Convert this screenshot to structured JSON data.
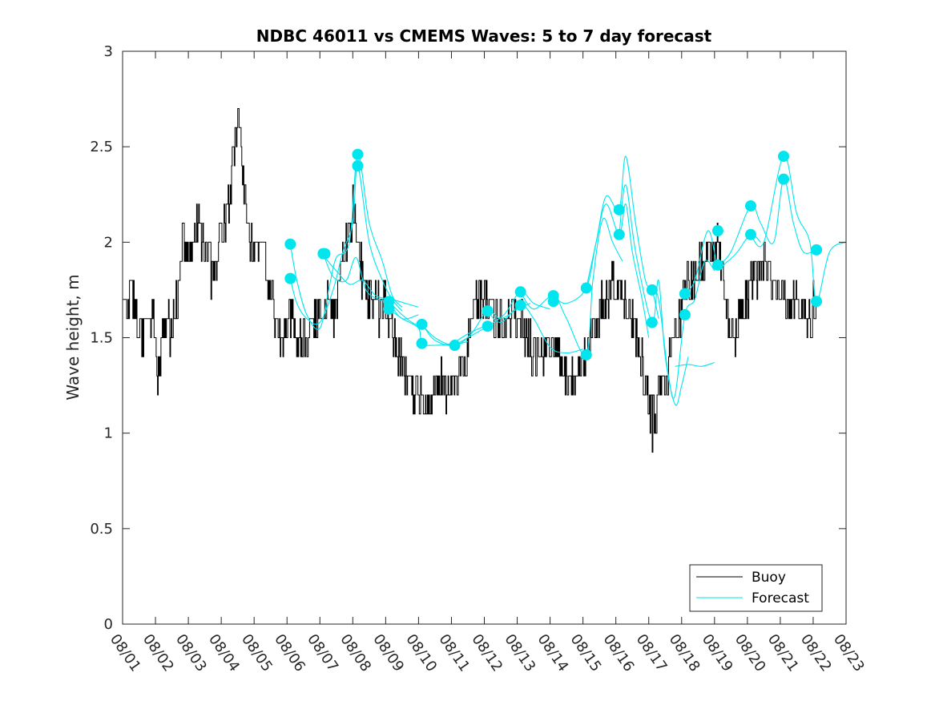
{
  "chart_data": {
    "type": "line",
    "title": "NDBC 46011 vs CMEMS Waves: 5 to 7 day forecast",
    "xlabel": "",
    "ylabel": "Wave height, m",
    "xlim": [
      0,
      22
    ],
    "ylim": [
      0,
      3
    ],
    "yticks": [
      0,
      0.5,
      1,
      1.5,
      2,
      2.5,
      3
    ],
    "ytick_labels": [
      "0",
      "0.5",
      "1",
      "1.5",
      "2",
      "2.5",
      "3"
    ],
    "xtick_labels": [
      "08/01",
      "08/02",
      "08/03",
      "08/04",
      "08/05",
      "08/06",
      "08/07",
      "08/08",
      "08/09",
      "08/10",
      "08/11",
      "08/12",
      "08/13",
      "08/14",
      "08/15",
      "08/16",
      "08/17",
      "08/18",
      "08/19",
      "08/20",
      "08/21",
      "08/22",
      "08/23"
    ],
    "grid": false,
    "legend": {
      "position": "bottom-right",
      "entries": [
        "Buoy",
        "Forecast"
      ]
    },
    "colors": {
      "buoy": "#000000",
      "forecast": "#00e5ee",
      "axis": "#262626"
    },
    "buoy_keypoints": [
      [
        0.0,
        1.75
      ],
      [
        0.1,
        1.6
      ],
      [
        0.25,
        1.75
      ],
      [
        0.45,
        1.6
      ],
      [
        0.6,
        1.5
      ],
      [
        0.8,
        1.65
      ],
      [
        0.95,
        1.55
      ],
      [
        1.05,
        1.3
      ],
      [
        1.15,
        1.4
      ],
      [
        1.25,
        1.55
      ],
      [
        1.5,
        1.55
      ],
      [
        1.65,
        1.7
      ],
      [
        1.75,
        1.9
      ],
      [
        1.85,
        2.05
      ],
      [
        2.0,
        1.9
      ],
      [
        2.15,
        2.0
      ],
      [
        2.3,
        2.1
      ],
      [
        2.4,
        2.0
      ],
      [
        2.5,
        1.95
      ],
      [
        2.6,
        2.05
      ],
      [
        2.7,
        1.8
      ],
      [
        2.85,
        1.9
      ],
      [
        3.0,
        2.05
      ],
      [
        3.15,
        2.1
      ],
      [
        3.3,
        2.3
      ],
      [
        3.5,
        2.7
      ],
      [
        3.6,
        2.45
      ],
      [
        3.7,
        2.3
      ],
      [
        3.85,
        2.0
      ],
      [
        4.0,
        1.95
      ],
      [
        4.2,
        2.0
      ],
      [
        4.35,
        1.85
      ],
      [
        4.5,
        1.7
      ],
      [
        4.7,
        1.55
      ],
      [
        4.85,
        1.45
      ],
      [
        5.0,
        1.6
      ],
      [
        5.15,
        1.65
      ],
      [
        5.3,
        1.5
      ],
      [
        5.45,
        1.45
      ],
      [
        5.6,
        1.5
      ],
      [
        5.75,
        1.55
      ],
      [
        5.9,
        1.6
      ],
      [
        6.1,
        1.65
      ],
      [
        6.25,
        1.7
      ],
      [
        6.4,
        1.6
      ],
      [
        6.55,
        1.7
      ],
      [
        6.7,
        1.95
      ],
      [
        6.85,
        2.05
      ],
      [
        7.0,
        2.2
      ],
      [
        7.1,
        2.0
      ],
      [
        7.25,
        1.85
      ],
      [
        7.4,
        1.75
      ],
      [
        7.6,
        1.7
      ],
      [
        7.8,
        1.65
      ],
      [
        8.0,
        1.7
      ],
      [
        8.2,
        1.55
      ],
      [
        8.4,
        1.4
      ],
      [
        8.6,
        1.3
      ],
      [
        8.8,
        1.25
      ],
      [
        9.0,
        1.2
      ],
      [
        9.2,
        1.15
      ],
      [
        9.4,
        1.2
      ],
      [
        9.6,
        1.3
      ],
      [
        9.8,
        1.2
      ],
      [
        10.0,
        1.25
      ],
      [
        10.2,
        1.3
      ],
      [
        10.4,
        1.35
      ],
      [
        10.6,
        1.55
      ],
      [
        10.8,
        1.7
      ],
      [
        11.0,
        1.75
      ],
      [
        11.2,
        1.65
      ],
      [
        11.4,
        1.6
      ],
      [
        11.6,
        1.55
      ],
      [
        11.8,
        1.65
      ],
      [
        12.0,
        1.6
      ],
      [
        12.2,
        1.55
      ],
      [
        12.4,
        1.45
      ],
      [
        12.6,
        1.4
      ],
      [
        12.8,
        1.35
      ],
      [
        13.0,
        1.45
      ],
      [
        13.2,
        1.4
      ],
      [
        13.4,
        1.35
      ],
      [
        13.6,
        1.25
      ],
      [
        13.8,
        1.3
      ],
      [
        14.0,
        1.35
      ],
      [
        14.2,
        1.45
      ],
      [
        14.4,
        1.6
      ],
      [
        14.6,
        1.7
      ],
      [
        14.8,
        1.75
      ],
      [
        15.0,
        1.8
      ],
      [
        15.2,
        1.7
      ],
      [
        15.4,
        1.65
      ],
      [
        15.6,
        1.55
      ],
      [
        15.8,
        1.35
      ],
      [
        16.0,
        1.2
      ],
      [
        16.1,
        1.05
      ],
      [
        16.2,
        1.1
      ],
      [
        16.3,
        1.25
      ],
      [
        16.5,
        1.3
      ],
      [
        16.7,
        1.4
      ],
      [
        16.9,
        1.6
      ],
      [
        17.1,
        1.75
      ],
      [
        17.3,
        1.8
      ],
      [
        17.5,
        1.85
      ],
      [
        17.7,
        1.9
      ],
      [
        17.9,
        1.95
      ],
      [
        18.1,
        2.0
      ],
      [
        18.3,
        1.7
      ],
      [
        18.5,
        1.5
      ],
      [
        18.7,
        1.55
      ],
      [
        18.9,
        1.65
      ],
      [
        19.1,
        1.8
      ],
      [
        19.3,
        1.85
      ],
      [
        19.5,
        1.9
      ],
      [
        19.7,
        1.85
      ],
      [
        19.9,
        1.75
      ],
      [
        20.1,
        1.7
      ],
      [
        20.3,
        1.65
      ],
      [
        20.5,
        1.7
      ],
      [
        20.7,
        1.65
      ],
      [
        20.9,
        1.6
      ],
      [
        21.0,
        1.65
      ],
      [
        21.1,
        1.55
      ]
    ],
    "forecast_series": [
      [
        [
          5.1,
          1.99
        ],
        [
          5.3,
          1.8
        ],
        [
          5.6,
          1.62
        ],
        [
          6.0,
          1.55
        ],
        [
          6.3,
          1.78
        ],
        [
          6.5,
          1.92
        ],
        [
          6.9,
          2.0
        ],
        [
          7.15,
          2.46
        ],
        [
          7.5,
          2.1
        ],
        [
          7.9,
          1.9
        ],
        [
          8.2,
          1.72
        ],
        [
          8.5,
          1.66
        ]
      ],
      [
        [
          5.1,
          1.81
        ],
        [
          5.3,
          1.68
        ],
        [
          5.6,
          1.6
        ],
        [
          6.0,
          1.58
        ],
        [
          6.4,
          1.75
        ],
        [
          6.7,
          1.95
        ],
        [
          7.0,
          2.1
        ],
        [
          7.15,
          2.4
        ],
        [
          7.5,
          2.0
        ],
        [
          7.9,
          1.8
        ],
        [
          8.2,
          1.7
        ],
        [
          8.5,
          1.64
        ]
      ],
      [
        [
          6.1,
          1.94
        ],
        [
          6.4,
          1.82
        ],
        [
          6.8,
          1.8
        ],
        [
          7.1,
          1.92
        ],
        [
          7.4,
          1.75
        ],
        [
          7.8,
          1.7
        ],
        [
          8.1,
          1.68
        ],
        [
          8.5,
          1.6
        ],
        [
          9.0,
          1.62
        ]
      ],
      [
        [
          6.1,
          1.93
        ],
        [
          6.5,
          1.85
        ],
        [
          6.9,
          1.78
        ],
        [
          7.3,
          1.8
        ],
        [
          7.7,
          1.72
        ],
        [
          8.2,
          1.7
        ],
        [
          8.6,
          1.68
        ],
        [
          9.0,
          1.66
        ]
      ],
      [
        [
          8.1,
          1.69
        ],
        [
          8.5,
          1.62
        ],
        [
          8.9,
          1.57
        ],
        [
          9.1,
          1.57
        ],
        [
          9.4,
          1.5
        ],
        [
          9.7,
          1.47
        ],
        [
          10.0,
          1.46
        ],
        [
          10.5,
          1.48
        ]
      ],
      [
        [
          8.1,
          1.65
        ],
        [
          8.5,
          1.6
        ],
        [
          9.0,
          1.55
        ],
        [
          9.1,
          1.47
        ],
        [
          9.5,
          1.46
        ],
        [
          10.0,
          1.47
        ],
        [
          10.5,
          1.52
        ],
        [
          11.0,
          1.56
        ]
      ],
      [
        [
          9.1,
          1.57
        ],
        [
          9.5,
          1.5
        ],
        [
          10.1,
          1.46
        ],
        [
          10.6,
          1.52
        ],
        [
          11.1,
          1.64
        ],
        [
          11.5,
          1.6
        ],
        [
          12.0,
          1.65
        ],
        [
          12.4,
          1.68
        ]
      ],
      [
        [
          10.1,
          1.46
        ],
        [
          10.5,
          1.5
        ],
        [
          11.1,
          1.56
        ],
        [
          11.6,
          1.62
        ],
        [
          12.1,
          1.74
        ],
        [
          12.5,
          1.68
        ],
        [
          13.0,
          1.65
        ]
      ],
      [
        [
          11.1,
          1.64
        ],
        [
          11.5,
          1.58
        ],
        [
          12.1,
          1.67
        ],
        [
          12.5,
          1.6
        ],
        [
          13.0,
          1.45
        ],
        [
          13.5,
          1.42
        ],
        [
          14.0,
          1.44
        ]
      ],
      [
        [
          12.1,
          1.74
        ],
        [
          12.5,
          1.65
        ],
        [
          13.1,
          1.72
        ],
        [
          13.5,
          1.6
        ],
        [
          14.1,
          1.41
        ],
        [
          14.3,
          1.8
        ],
        [
          14.6,
          2.12
        ],
        [
          14.9,
          2.0
        ],
        [
          15.2,
          1.9
        ]
      ],
      [
        [
          13.1,
          1.72
        ],
        [
          13.5,
          1.68
        ],
        [
          14.1,
          1.76
        ],
        [
          14.4,
          2.0
        ],
        [
          14.7,
          2.2
        ],
        [
          15.1,
          2.04
        ],
        [
          15.3,
          2.2
        ],
        [
          15.5,
          1.95
        ],
        [
          15.8,
          1.7
        ],
        [
          16.0,
          1.5
        ]
      ],
      [
        [
          14.1,
          1.76
        ],
        [
          14.4,
          2.0
        ],
        [
          14.7,
          2.24
        ],
        [
          15.1,
          2.17
        ],
        [
          15.3,
          2.45
        ],
        [
          15.6,
          2.1
        ],
        [
          15.9,
          1.8
        ],
        [
          16.1,
          1.75
        ],
        [
          16.3,
          1.6
        ]
      ],
      [
        [
          15.1,
          2.04
        ],
        [
          15.3,
          2.3
        ],
        [
          15.6,
          1.95
        ],
        [
          16.1,
          1.58
        ],
        [
          16.3,
          1.8
        ],
        [
          16.5,
          1.4
        ],
        [
          16.8,
          1.15
        ],
        [
          17.0,
          1.25
        ],
        [
          17.2,
          1.4
        ]
      ],
      [
        [
          16.1,
          1.75
        ],
        [
          16.3,
          1.7
        ],
        [
          16.6,
          1.3
        ],
        [
          16.8,
          1.2
        ],
        [
          17.1,
          1.62
        ],
        [
          17.4,
          1.7
        ],
        [
          17.7,
          1.9
        ],
        [
          18.0,
          1.85
        ]
      ],
      [
        [
          17.1,
          1.73
        ],
        [
          17.4,
          1.8
        ],
        [
          17.8,
          2.06
        ],
        [
          18.1,
          1.88
        ],
        [
          18.4,
          1.9
        ],
        [
          18.7,
          1.95
        ],
        [
          19.1,
          2.04
        ],
        [
          19.4,
          2.0
        ]
      ],
      [
        [
          18.1,
          1.88
        ],
        [
          18.5,
          1.95
        ],
        [
          19.1,
          2.19
        ],
        [
          19.4,
          2.1
        ],
        [
          19.8,
          2.0
        ],
        [
          20.1,
          2.33
        ],
        [
          20.4,
          2.1
        ],
        [
          20.7,
          1.95
        ],
        [
          21.1,
          1.96
        ]
      ],
      [
        [
          19.1,
          2.04
        ],
        [
          19.5,
          2.0
        ],
        [
          20.1,
          2.45
        ],
        [
          20.5,
          2.15
        ],
        [
          20.9,
          2.0
        ],
        [
          21.1,
          1.69
        ],
        [
          21.5,
          1.95
        ],
        [
          22.0,
          2.0
        ]
      ],
      [
        [
          16.8,
          1.35
        ],
        [
          17.2,
          1.36
        ],
        [
          17.6,
          1.35
        ],
        [
          18.0,
          1.37
        ]
      ]
    ],
    "forecast_points": [
      [
        5.1,
        1.99
      ],
      [
        5.1,
        1.81
      ],
      [
        6.1,
        1.94
      ],
      [
        6.15,
        1.94
      ],
      [
        7.15,
        2.46
      ],
      [
        7.15,
        2.4
      ],
      [
        8.1,
        1.69
      ],
      [
        8.1,
        1.65
      ],
      [
        9.1,
        1.57
      ],
      [
        9.1,
        1.47
      ],
      [
        10.1,
        1.46
      ],
      [
        11.1,
        1.64
      ],
      [
        11.1,
        1.56
      ],
      [
        12.1,
        1.74
      ],
      [
        12.1,
        1.67
      ],
      [
        13.1,
        1.72
      ],
      [
        13.1,
        1.69
      ],
      [
        14.1,
        1.76
      ],
      [
        14.1,
        1.41
      ],
      [
        15.1,
        2.17
      ],
      [
        15.1,
        2.04
      ],
      [
        16.1,
        1.75
      ],
      [
        16.1,
        1.58
      ],
      [
        17.1,
        1.73
      ],
      [
        17.1,
        1.62
      ],
      [
        18.1,
        2.06
      ],
      [
        18.1,
        1.88
      ],
      [
        19.1,
        2.19
      ],
      [
        19.1,
        2.04
      ],
      [
        20.1,
        2.45
      ],
      [
        20.1,
        2.33
      ],
      [
        21.1,
        1.96
      ],
      [
        21.1,
        1.69
      ]
    ]
  }
}
